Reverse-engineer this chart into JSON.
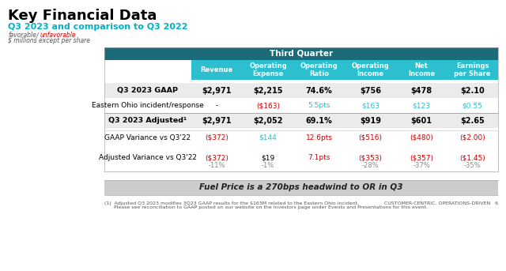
{
  "title": "Key Financial Data",
  "subtitle": "Q3 2023 and comparison to Q3 2022",
  "subtitle_color": "#00B0C8",
  "favorable_label": "favorable",
  "unfavorable_label": "unfavorable",
  "units_label": "$ millions except per share",
  "header_row_label": "Third Quarter",
  "header_bg_color": "#1C6B7A",
  "subheader_bg_color": "#2BBFCF",
  "col_headers": [
    "Revenue",
    "Operating\nExpense",
    "Operating\nRatio",
    "Operating\nIncome",
    "Net\nIncome",
    "Earnings\nper Share"
  ],
  "rows": [
    {
      "label": "Q3 2023 GAAP",
      "bold": true,
      "values": [
        "$2,971",
        "$2,215",
        "74.6%",
        "$756",
        "$478",
        "$2.10"
      ],
      "colors": [
        "black",
        "black",
        "black",
        "black",
        "black",
        "black"
      ]
    },
    {
      "label": "Eastern Ohio incident/response",
      "bold": false,
      "values": [
        "-",
        "($163)",
        "5.5pts",
        "$163",
        "$123",
        "$0.55"
      ],
      "colors": [
        "black",
        "#CC0000",
        "#2BBFCF",
        "#2BBFCF",
        "#2BBFCF",
        "#2BBFCF"
      ]
    },
    {
      "label": "Q3 2023 Adjusted¹",
      "bold": true,
      "values": [
        "$2,971",
        "$2,052",
        "69.1%",
        "$919",
        "$601",
        "$2.65"
      ],
      "colors": [
        "black",
        "black",
        "black",
        "black",
        "black",
        "black"
      ],
      "top_border": true
    },
    {
      "label": "GAAP Variance vs Q3'22",
      "bold": false,
      "values": [
        "($372)",
        "$144",
        "12.6pts",
        "($516)",
        "($480)",
        "($2.00)"
      ],
      "colors": [
        "#CC0000",
        "#2BBFCF",
        "#CC0000",
        "#CC0000",
        "#CC0000",
        "#CC0000"
      ],
      "spacer_above": true
    },
    {
      "label": "Adjusted Variance vs Q3'22",
      "bold": false,
      "values": [
        "($372)",
        "$19",
        "7.1pts",
        "($353)",
        "($357)",
        "($1.45)"
      ],
      "sub_values": [
        "-11%",
        "-1%",
        "",
        "-28%",
        "-37%",
        "-35%"
      ],
      "colors": [
        "#CC0000",
        "black",
        "#CC0000",
        "#CC0000",
        "#CC0000",
        "#CC0000"
      ],
      "sub_colors": [
        "#888888",
        "#888888",
        "",
        "#888888",
        "#888888",
        "#888888"
      ]
    }
  ],
  "footer_text": "Fuel Price is a 270bps headwind to OR in Q3",
  "footnote1": "(1)  Adjusted Q3 2023 modifies 3Q23 GAAP results for the $163M related to the Eastern Ohio incident.",
  "footnote2": "      Please see reconciliation to GAAP posted on our website on the Investors page under Events and Presentations for this event.",
  "page_number": "6",
  "footer_right": "CUSTOMER-CENTRIC. OPERATIONS-DRIVEN",
  "bg_color": "#FFFFFF"
}
